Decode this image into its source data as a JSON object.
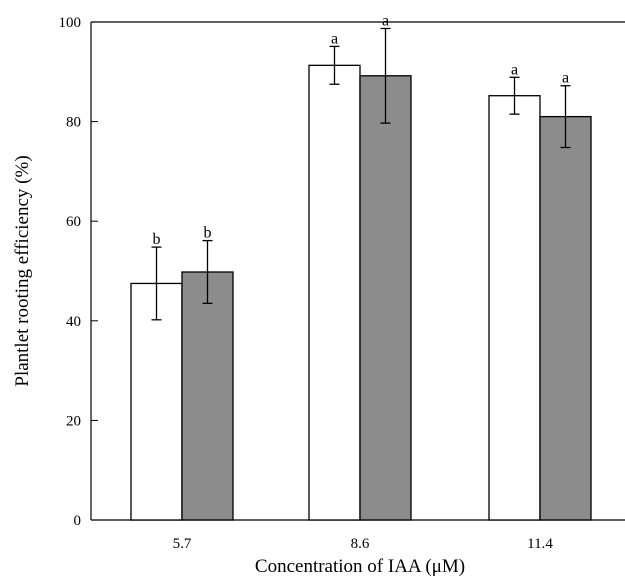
{
  "chart_data": {
    "type": "bar",
    "title": "",
    "xlabel": "Concentration of IAA (μM)",
    "ylabel": "Plantlet rooting efficiency (%)",
    "ylim": [
      0,
      100
    ],
    "yticks": [
      0,
      20,
      40,
      60,
      80,
      100
    ],
    "categories": [
      "5.7",
      "8.6",
      "11.4"
    ],
    "series": [
      {
        "color": "#ffffff",
        "values": [
          47.5,
          91.3,
          85.2
        ],
        "errors": [
          7.3,
          3.8,
          3.7
        ],
        "significance": [
          "b",
          "a",
          "a"
        ]
      },
      {
        "color": "#8c8c8c",
        "values": [
          49.8,
          89.2,
          81.0
        ],
        "errors": [
          6.3,
          9.5,
          6.2
        ],
        "significance": [
          "b",
          "a",
          "a"
        ]
      }
    ],
    "grid": false,
    "legend": "none"
  }
}
